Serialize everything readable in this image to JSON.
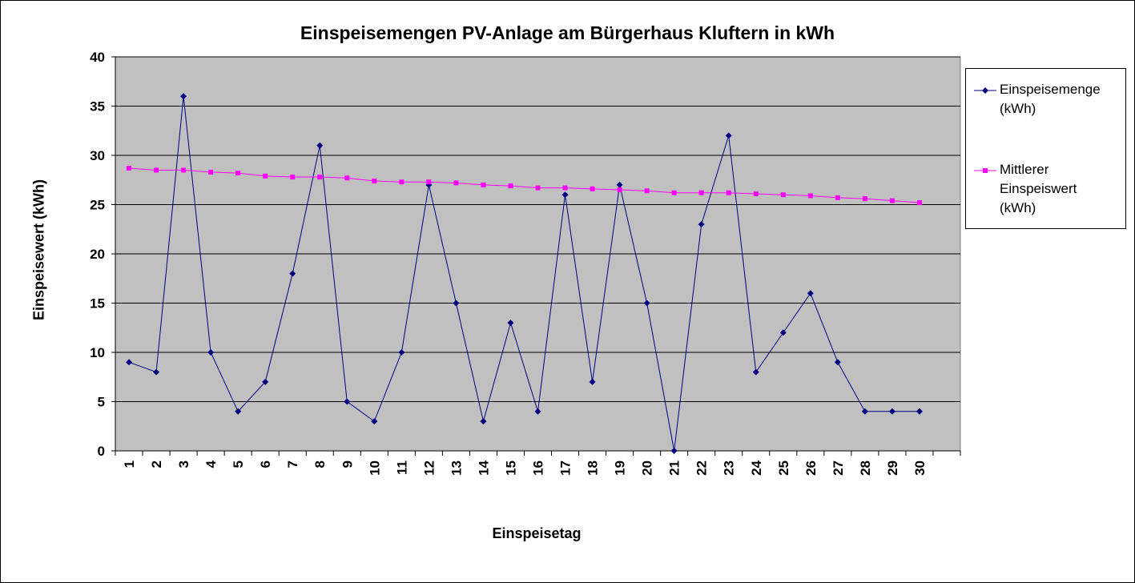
{
  "chart_data": {
    "type": "line",
    "title": "Einspeisemengen PV-Anlage am Bürgerhaus Kluftern in kWh",
    "xlabel": "Einspeisetag",
    "ylabel": "Einspeisewert (kWh)",
    "categories": [
      "1",
      "2",
      "3",
      "4",
      "5",
      "6",
      "7",
      "8",
      "9",
      "10",
      "11",
      "12",
      "13",
      "14",
      "15",
      "16",
      "17",
      "18",
      "19",
      "20",
      "21",
      "22",
      "23",
      "24",
      "25",
      "26",
      "27",
      "28",
      "29",
      "30"
    ],
    "ylim": [
      0,
      40
    ],
    "yticks": [
      "0",
      "5",
      "10",
      "15",
      "20",
      "25",
      "30",
      "35",
      "40"
    ],
    "grid": true,
    "legend_position": "right",
    "series": [
      {
        "name": "Einspeisemenge (kWh)",
        "color": "#000080",
        "marker": "diamond",
        "values": [
          9,
          8,
          36,
          10,
          4,
          7,
          18,
          31,
          5,
          3,
          10,
          27,
          15,
          3,
          13,
          4,
          26,
          7,
          27,
          15,
          0,
          23,
          32,
          8,
          12,
          16,
          9,
          4,
          4,
          4
        ]
      },
      {
        "name": "Mittlerer Einspeiswert (kWh)",
        "color": "#ff00ff",
        "marker": "square",
        "values": [
          28.7,
          28.5,
          28.5,
          28.3,
          28.2,
          27.9,
          27.8,
          27.8,
          27.7,
          27.4,
          27.3,
          27.3,
          27.2,
          27.0,
          26.9,
          26.7,
          26.7,
          26.6,
          26.5,
          26.4,
          26.2,
          26.2,
          26.2,
          26.1,
          26.0,
          25.9,
          25.7,
          25.6,
          25.4,
          25.2
        ]
      }
    ],
    "legend_labels": [
      [
        "Einspeisemenge",
        "(kWh)"
      ],
      [
        "Mittlerer",
        "Einspeiswert",
        "(kWh)"
      ]
    ]
  },
  "colors": {
    "plot_background": "#c0c0c0",
    "gridline": "#000000"
  }
}
